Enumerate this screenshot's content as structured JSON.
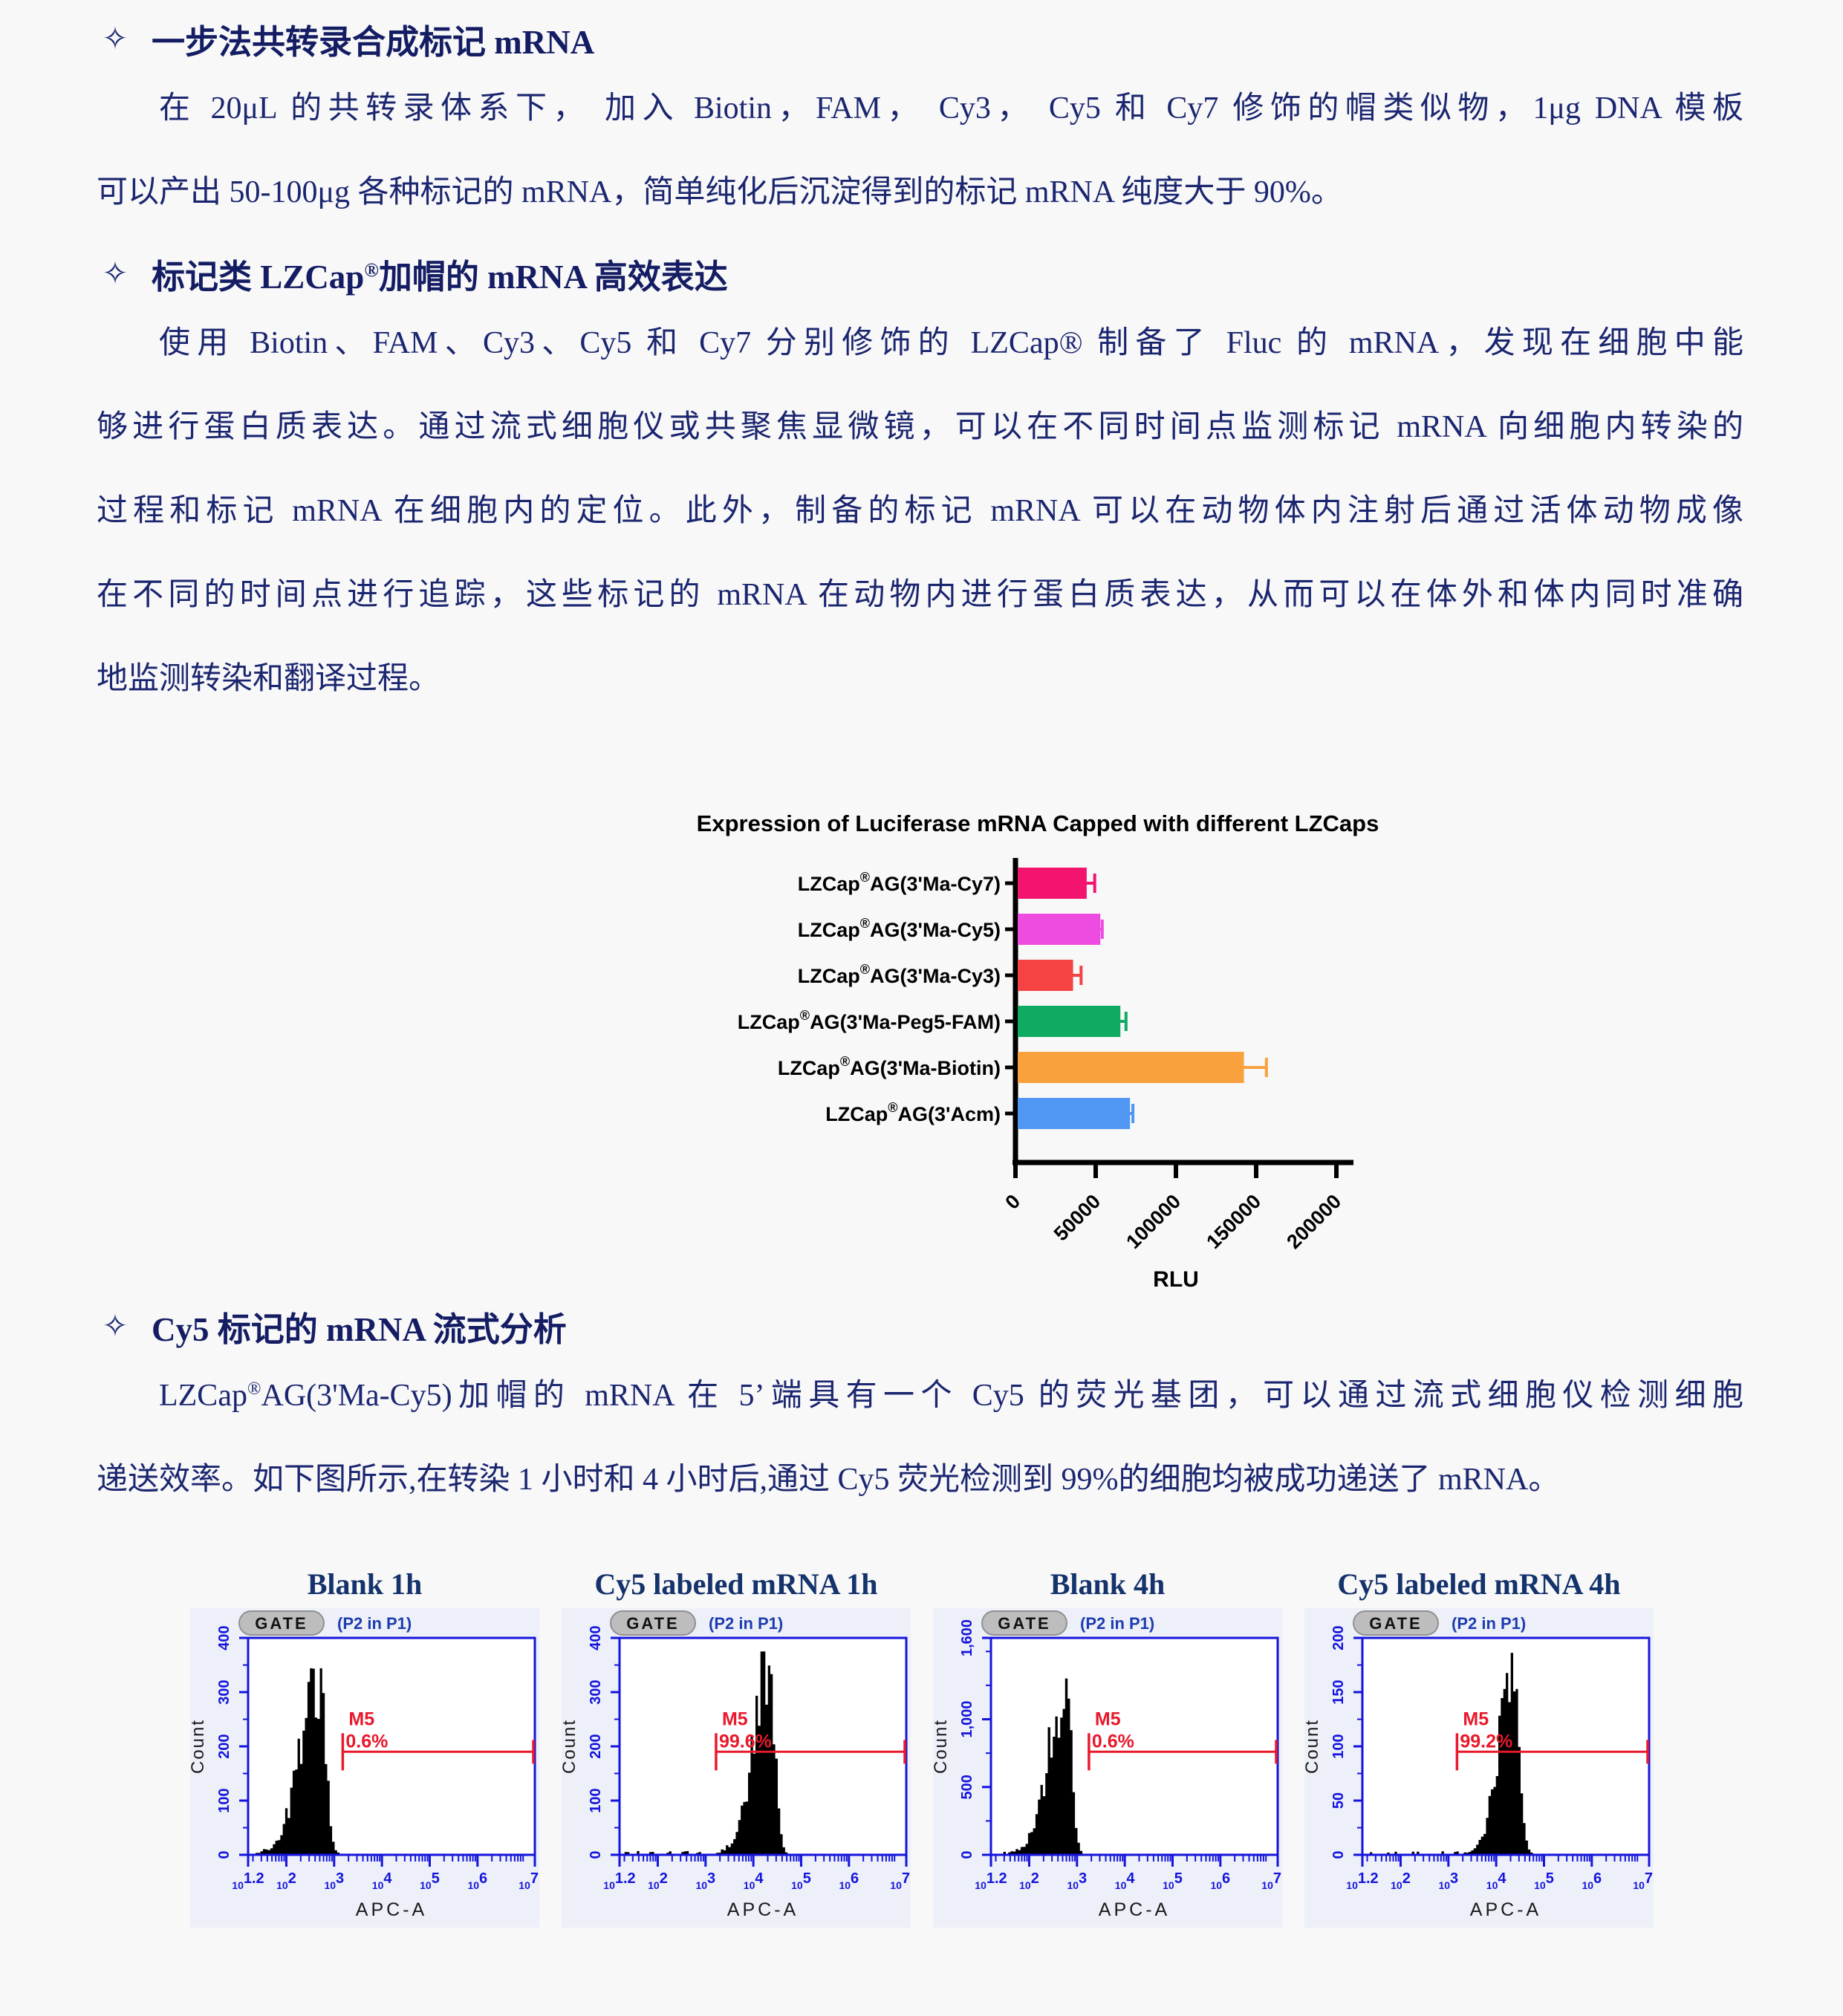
{
  "page": {
    "background": "#f8f8f8",
    "body_color": "#1b2670",
    "heading_color": "#141d63"
  },
  "headings": [
    {
      "bullet": "✧",
      "text": "一步法共转录合成标记 mRNA"
    },
    {
      "bullet": "✧",
      "text": "标记类 LZCap^®加帽的 mRNA 高效表达"
    },
    {
      "bullet": "✧",
      "text": "Cy5 标记的 mRNA 流式分析"
    }
  ],
  "paragraphs": [
    {
      "lines": [
        "在 20μL 的共转录体系下， 加入 Biotin，FAM， Cy3， Cy5 和 Cy7 修饰的帽类似物，1μg DNA 模板",
        "可以产出 50-100μg 各种标记的 mRNA，简单纯化后沉淀得到的标记 mRNA 纯度大于 90%。"
      ]
    },
    {
      "lines": [
        "使用 Biotin、FAM、Cy3、Cy5 和 Cy7 分别修饰的 LZCap® 制备了 Fluc 的 mRNA，发现在细胞中能",
        "够进行蛋白质表达。通过流式细胞仪或共聚焦显微镜，可以在不同时间点监测标记 mRNA 向细胞内转染的",
        "过程和标记 mRNA 在细胞内的定位。此外，制备的标记 mRNA 可以在动物体内注射后通过活体动物成像",
        "在不同的时间点进行追踪，这些标记的 mRNA 在动物内进行蛋白质表达，从而可以在体外和体内同时准确",
        "地监测转染和翻译过程。"
      ]
    },
    {
      "lines": [
        "LZCap^®AG(3'Ma-Cy5)加帽的 mRNA 在 5’端具有一个 Cy5 的荧光基团，可以通过流式细胞仪检测细胞",
        "递送效率。如下图所示,在转染 1 小时和 4 小时后,通过 Cy5 荧光检测到 99%的细胞均被成功递送了 mRNA。"
      ]
    }
  ],
  "histogram_style": {
    "panel_bg": "#edf0f8",
    "axis_color": "#1414dd",
    "fill": "#000000",
    "marker_color": "#e8192c",
    "title_color": "#14326b",
    "gate_button": "GATE",
    "gate_scope": "(P2 in P1)",
    "ylabel": "Count",
    "xlabel": "APC-A",
    "x_log_range": [
      1.2,
      7.2
    ],
    "x_tick_exponents": [
      "1.2",
      "2",
      "3",
      "4",
      "5",
      "6",
      "7.2"
    ]
  },
  "chart_data": [
    {
      "type": "bar",
      "orientation": "horizontal",
      "title": "Expression of Luciferase mRNA Capped with different LZCaps",
      "categories": [
        "LZCap^®AG(3'Ma-Cy7)",
        "LZCap^®AG(3'Ma-Cy5)",
        "LZCap^®AG(3'Ma-Cy3)",
        "LZCap^®AG(3'Ma-Peg5-FAM)",
        "LZCap^®AG(3'Ma-Biotin)",
        "LZCap^®AG(3'Acm)"
      ],
      "values": [
        43000,
        51500,
        34500,
        64000,
        141000,
        70000
      ],
      "errors": [
        5000,
        1200,
        5000,
        3500,
        14000,
        1800
      ],
      "colors": [
        "#f2146f",
        "#ee4ce0",
        "#f54242",
        "#10ab63",
        "#f9a23d",
        "#4f97f3"
      ],
      "x_ticks": [
        0,
        50000,
        100000,
        150000,
        200000
      ],
      "x_tick_labels": [
        "0",
        "50000",
        "100000",
        "150000",
        "200000"
      ],
      "xlim": [
        0,
        200000
      ],
      "xlabel": "RLU",
      "axis_color": "#000000",
      "title_color": "#000000"
    },
    {
      "type": "histogram",
      "title": "Blank 1h",
      "marker": {
        "label": "M5",
        "percent": "0.6%",
        "from_log": 3.18,
        "at_count": 190
      },
      "y_max": 400,
      "y_ticks": [
        [
          0,
          "0"
        ],
        [
          100,
          "100"
        ],
        [
          200,
          "200"
        ],
        [
          300,
          "300"
        ],
        [
          400,
          "400"
        ]
      ],
      "y_minor": [
        50,
        150,
        250,
        350
      ],
      "peak": {
        "log_center": 2.72,
        "count": 332,
        "spread_left": 0.4,
        "spread_right": 0.115
      }
    },
    {
      "type": "histogram",
      "title": "Cy5 labeled mRNA 1h",
      "marker": {
        "label": "M5",
        "percent": "99.6%",
        "from_log": 3.22,
        "at_count": 190
      },
      "y_max": 400,
      "y_ticks": [
        [
          0,
          "0"
        ],
        [
          100,
          "100"
        ],
        [
          200,
          "200"
        ],
        [
          300,
          "300"
        ],
        [
          400,
          "400"
        ]
      ],
      "y_minor": [
        50,
        150,
        250,
        350
      ],
      "peak": {
        "log_center": 4.33,
        "count": 362,
        "spread_left": 0.33,
        "spread_right": 0.115
      }
    },
    {
      "type": "histogram",
      "title": "Blank 4h",
      "marker": {
        "label": "M5",
        "percent": "0.6%",
        "from_log": 3.25,
        "at_count": 760
      },
      "y_max": 1600,
      "y_ticks": [
        [
          0,
          "0"
        ],
        [
          500,
          "500"
        ],
        [
          1000,
          "1,000"
        ],
        [
          1600,
          "1,600"
        ]
      ],
      "y_minor": [
        250,
        750,
        1250,
        1500
      ],
      "peak": {
        "log_center": 2.78,
        "count": 1255,
        "spread_left": 0.36,
        "spread_right": 0.105
      }
    },
    {
      "type": "histogram",
      "title": "Cy5 labeled mRNA 4h",
      "marker": {
        "label": "M5",
        "percent": "99.2%",
        "from_log": 3.18,
        "at_count": 95
      },
      "y_max": 200,
      "y_ticks": [
        [
          0,
          "0"
        ],
        [
          50,
          "50"
        ],
        [
          100,
          "100"
        ],
        [
          150,
          "150"
        ],
        [
          200,
          "200"
        ]
      ],
      "y_minor": [
        25,
        75,
        125,
        175
      ],
      "peak": {
        "log_center": 4.38,
        "count": 183,
        "spread_left": 0.3,
        "spread_right": 0.115
      }
    }
  ]
}
